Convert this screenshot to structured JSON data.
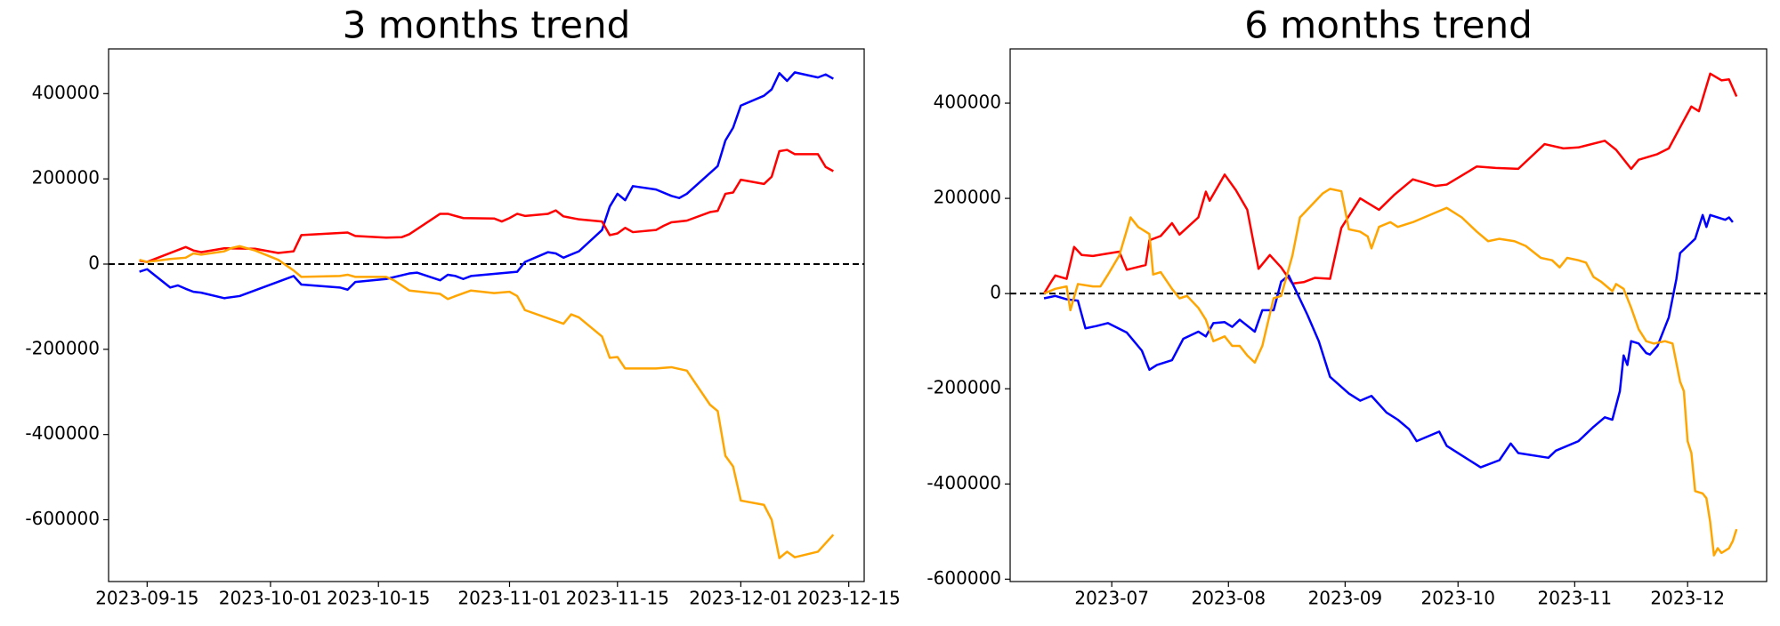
{
  "chart_data": [
    {
      "type": "line",
      "title": "3 months trend",
      "xlim": [
        "2023-09-10",
        "2023-12-17"
      ],
      "xticks": [
        "2023-09-15",
        "2023-10-01",
        "2023-10-15",
        "2023-11-01",
        "2023-11-15",
        "2023-12-01",
        "2023-12-15"
      ],
      "ylim": [
        -745000,
        505000
      ],
      "yticks": [
        -600000,
        -400000,
        -200000,
        0,
        200000,
        400000
      ],
      "hline": 0,
      "series": [
        {
          "color": "#0000ff",
          "x": [
            "2023-09-14",
            "2023-09-15",
            "2023-09-18",
            "2023-09-19",
            "2023-09-20",
            "2023-09-21",
            "2023-09-22",
            "2023-09-25",
            "2023-09-27",
            "2023-10-04",
            "2023-10-05",
            "2023-10-10",
            "2023-10-11",
            "2023-10-12",
            "2023-10-16",
            "2023-10-19",
            "2023-10-20",
            "2023-10-23",
            "2023-10-24",
            "2023-10-25",
            "2023-10-26",
            "2023-10-27",
            "2023-11-02",
            "2023-11-03",
            "2023-11-06",
            "2023-11-07",
            "2023-11-08",
            "2023-11-10",
            "2023-11-13",
            "2023-11-14",
            "2023-11-15",
            "2023-11-16",
            "2023-11-17",
            "2023-11-20",
            "2023-11-22",
            "2023-11-23",
            "2023-11-24",
            "2023-11-28",
            "2023-11-29",
            "2023-11-30",
            "2023-12-01",
            "2023-12-04",
            "2023-12-05",
            "2023-12-06",
            "2023-12-07",
            "2023-12-08",
            "2023-12-11",
            "2023-12-12",
            "2023-12-13"
          ],
          "values": [
            -18000,
            -12000,
            -55000,
            -50000,
            -58000,
            -65000,
            -67000,
            -80000,
            -75000,
            -28000,
            -48000,
            -55000,
            -60000,
            -42000,
            -35000,
            -22000,
            -20000,
            -38000,
            -25000,
            -28000,
            -35000,
            -28000,
            -18000,
            5000,
            28000,
            25000,
            15000,
            30000,
            80000,
            135000,
            165000,
            150000,
            183000,
            175000,
            160000,
            155000,
            165000,
            230000,
            290000,
            320000,
            372000,
            395000,
            410000,
            448000,
            430000,
            450000,
            438000,
            445000,
            435000
          ]
        },
        {
          "color": "#ff0000",
          "x": [
            "2023-09-14",
            "2023-09-15",
            "2023-09-20",
            "2023-09-21",
            "2023-09-22",
            "2023-09-25",
            "2023-09-29",
            "2023-10-02",
            "2023-10-04",
            "2023-10-05",
            "2023-10-10",
            "2023-10-11",
            "2023-10-12",
            "2023-10-16",
            "2023-10-18",
            "2023-10-19",
            "2023-10-23",
            "2023-10-24",
            "2023-10-26",
            "2023-10-30",
            "2023-10-31",
            "2023-11-01",
            "2023-11-02",
            "2023-11-03",
            "2023-11-06",
            "2023-11-07",
            "2023-11-08",
            "2023-11-10",
            "2023-11-13",
            "2023-11-14",
            "2023-11-15",
            "2023-11-16",
            "2023-11-17",
            "2023-11-20",
            "2023-11-21",
            "2023-11-22",
            "2023-11-24",
            "2023-11-27",
            "2023-11-28",
            "2023-11-29",
            "2023-11-30",
            "2023-12-01",
            "2023-12-04",
            "2023-12-05",
            "2023-12-06",
            "2023-12-07",
            "2023-12-08",
            "2023-12-11",
            "2023-12-12",
            "2023-12-13"
          ],
          "values": [
            8000,
            5000,
            40000,
            32000,
            28000,
            37000,
            36000,
            26000,
            30000,
            68000,
            73000,
            74000,
            66000,
            62000,
            63000,
            70000,
            118000,
            118000,
            108000,
            107000,
            100000,
            108000,
            118000,
            113000,
            118000,
            126000,
            112000,
            105000,
            100000,
            68000,
            72000,
            85000,
            75000,
            80000,
            90000,
            98000,
            102000,
            122000,
            125000,
            165000,
            168000,
            198000,
            188000,
            205000,
            265000,
            268000,
            258000,
            258000,
            228000,
            218000
          ]
        },
        {
          "color": "#ffa500",
          "x": [
            "2023-09-14",
            "2023-09-15",
            "2023-09-18",
            "2023-09-20",
            "2023-09-21",
            "2023-09-22",
            "2023-09-25",
            "2023-09-26",
            "2023-09-27",
            "2023-09-29",
            "2023-10-02",
            "2023-10-04",
            "2023-10-05",
            "2023-10-10",
            "2023-10-11",
            "2023-10-12",
            "2023-10-16",
            "2023-10-17",
            "2023-10-19",
            "2023-10-23",
            "2023-10-24",
            "2023-10-25",
            "2023-10-27",
            "2023-10-30",
            "2023-11-01",
            "2023-11-02",
            "2023-11-03",
            "2023-11-08",
            "2023-11-09",
            "2023-11-10",
            "2023-11-13",
            "2023-11-14",
            "2023-11-15",
            "2023-11-16",
            "2023-11-20",
            "2023-11-22",
            "2023-11-24",
            "2023-11-27",
            "2023-11-28",
            "2023-11-29",
            "2023-11-30",
            "2023-12-01",
            "2023-12-04",
            "2023-12-05",
            "2023-12-06",
            "2023-12-07",
            "2023-12-08",
            "2023-12-11",
            "2023-12-13"
          ],
          "values": [
            10000,
            5000,
            12000,
            15000,
            25000,
            22000,
            30000,
            38000,
            42000,
            32000,
            10000,
            -15000,
            -30000,
            -28000,
            -25000,
            -30000,
            -30000,
            -38000,
            -62000,
            -70000,
            -82000,
            -75000,
            -62000,
            -68000,
            -65000,
            -75000,
            -108000,
            -140000,
            -118000,
            -125000,
            -170000,
            -220000,
            -218000,
            -245000,
            -245000,
            -242000,
            -250000,
            -330000,
            -345000,
            -450000,
            -475000,
            -555000,
            -565000,
            -600000,
            -690000,
            -675000,
            -688000,
            -675000,
            -635000
          ]
        }
      ]
    },
    {
      "type": "line",
      "title": "6 months trend",
      "xlim": [
        "2023-06-04",
        "2023-12-22"
      ],
      "xticks": [
        {
          "value": "2023-07-01",
          "label": "2023-07"
        },
        {
          "value": "2023-08-01",
          "label": "2023-08"
        },
        {
          "value": "2023-09-01",
          "label": "2023-09"
        },
        {
          "value": "2023-10-01",
          "label": "2023-10"
        },
        {
          "value": "2023-11-01",
          "label": "2023-11"
        },
        {
          "value": "2023-12-01",
          "label": "2023-12"
        }
      ],
      "ylim": [
        -605000,
        514000
      ],
      "yticks": [
        -600000,
        -400000,
        -200000,
        0,
        200000,
        400000
      ],
      "hline": 0,
      "series": [
        {
          "color": "#ff0000",
          "x": [
            "2023-06-13",
            "2023-06-15",
            "2023-06-16",
            "2023-06-19",
            "2023-06-21",
            "2023-06-23",
            "2023-06-26",
            "2023-06-29",
            "2023-07-03",
            "2023-07-05",
            "2023-07-10",
            "2023-07-11",
            "2023-07-14",
            "2023-07-17",
            "2023-07-19",
            "2023-07-24",
            "2023-07-26",
            "2023-07-27",
            "2023-07-31",
            "2023-08-03",
            "2023-08-06",
            "2023-08-09",
            "2023-08-12",
            "2023-08-15",
            "2023-08-18",
            "2023-08-21",
            "2023-08-24",
            "2023-08-28",
            "2023-08-31",
            "2023-09-05",
            "2023-09-10",
            "2023-09-14",
            "2023-09-19",
            "2023-09-25",
            "2023-09-28",
            "2023-10-06",
            "2023-10-11",
            "2023-10-17",
            "2023-10-24",
            "2023-10-29",
            "2023-11-02",
            "2023-11-09",
            "2023-11-12",
            "2023-11-16",
            "2023-11-18",
            "2023-11-23",
            "2023-11-26",
            "2023-11-30",
            "2023-12-02",
            "2023-12-04",
            "2023-12-07",
            "2023-12-10",
            "2023-12-12",
            "2023-12-14"
          ],
          "values": [
            0,
            26000,
            38000,
            31000,
            98000,
            81000,
            79000,
            83000,
            88000,
            50000,
            60000,
            112000,
            121000,
            148000,
            124000,
            160000,
            214000,
            195000,
            250000,
            217000,
            176000,
            52000,
            81000,
            55000,
            21000,
            24000,
            33000,
            31000,
            138000,
            200000,
            176000,
            207000,
            240000,
            226000,
            229000,
            267000,
            264000,
            262000,
            314000,
            305000,
            307000,
            321000,
            302000,
            262000,
            281000,
            293000,
            305000,
            364000,
            393000,
            383000,
            462000,
            448000,
            450000,
            414000
          ]
        },
        {
          "color": "#0000ff",
          "x": [
            "2023-06-13",
            "2023-06-16",
            "2023-06-19",
            "2023-06-22",
            "2023-06-24",
            "2023-06-27",
            "2023-06-30",
            "2023-07-05",
            "2023-07-09",
            "2023-07-11",
            "2023-07-13",
            "2023-07-17",
            "2023-07-20",
            "2023-07-24",
            "2023-07-26",
            "2023-07-28",
            "2023-07-31",
            "2023-08-02",
            "2023-08-04",
            "2023-08-08",
            "2023-08-10",
            "2023-08-13",
            "2023-08-15",
            "2023-08-17",
            "2023-08-19",
            "2023-08-22",
            "2023-08-25",
            "2023-08-28",
            "2023-09-02",
            "2023-09-05",
            "2023-09-08",
            "2023-09-12",
            "2023-09-15",
            "2023-09-18",
            "2023-09-20",
            "2023-09-26",
            "2023-09-28",
            "2023-10-02",
            "2023-10-05",
            "2023-10-07",
            "2023-10-12",
            "2023-10-15",
            "2023-10-17",
            "2023-10-25",
            "2023-10-27",
            "2023-11-02",
            "2023-11-06",
            "2023-11-09",
            "2023-11-11",
            "2023-11-13",
            "2023-11-14",
            "2023-11-15",
            "2023-11-16",
            "2023-11-18",
            "2023-11-20",
            "2023-11-21",
            "2023-11-23",
            "2023-11-26",
            "2023-11-27",
            "2023-11-28",
            "2023-11-29",
            "2023-12-01",
            "2023-12-03",
            "2023-12-05",
            "2023-12-06",
            "2023-12-07",
            "2023-12-11",
            "2023-12-12",
            "2023-12-13"
          ],
          "values": [
            -10000,
            -5000,
            -12000,
            -15000,
            -73000,
            -68000,
            -62000,
            -82000,
            -120000,
            -160000,
            -150000,
            -140000,
            -95000,
            -80000,
            -90000,
            -62000,
            -60000,
            -70000,
            -55000,
            -80000,
            -35000,
            -35000,
            25000,
            38000,
            5000,
            -45000,
            -100000,
            -175000,
            -210000,
            -225000,
            -215000,
            -250000,
            -265000,
            -285000,
            -310000,
            -290000,
            -320000,
            -340000,
            -355000,
            -365000,
            -350000,
            -315000,
            -335000,
            -345000,
            -330000,
            -310000,
            -280000,
            -260000,
            -265000,
            -205000,
            -130000,
            -150000,
            -100000,
            -105000,
            -125000,
            -128000,
            -110000,
            -50000,
            -10000,
            30000,
            85000,
            100000,
            115000,
            165000,
            140000,
            165000,
            155000,
            160000,
            150000
          ]
        },
        {
          "color": "#ffa500",
          "x": [
            "2023-06-13",
            "2023-06-16",
            "2023-06-19",
            "2023-06-20",
            "2023-06-22",
            "2023-06-26",
            "2023-06-28",
            "2023-06-30",
            "2023-07-03",
            "2023-07-06",
            "2023-07-08",
            "2023-07-11",
            "2023-07-12",
            "2023-07-14",
            "2023-07-17",
            "2023-07-19",
            "2023-07-21",
            "2023-07-24",
            "2023-07-26",
            "2023-07-28",
            "2023-07-31",
            "2023-08-02",
            "2023-08-04",
            "2023-08-06",
            "2023-08-08",
            "2023-08-10",
            "2023-08-13",
            "2023-08-15",
            "2023-08-18",
            "2023-08-20",
            "2023-08-23",
            "2023-08-26",
            "2023-08-28",
            "2023-08-31",
            "2023-09-02",
            "2023-09-05",
            "2023-09-07",
            "2023-09-08",
            "2023-09-10",
            "2023-09-13",
            "2023-09-15",
            "2023-09-19",
            "2023-09-22",
            "2023-09-25",
            "2023-09-28",
            "2023-10-02",
            "2023-10-06",
            "2023-10-09",
            "2023-10-12",
            "2023-10-16",
            "2023-10-19",
            "2023-10-23",
            "2023-10-26",
            "2023-10-28",
            "2023-10-30",
            "2023-11-02",
            "2023-11-04",
            "2023-11-06",
            "2023-11-08",
            "2023-11-11",
            "2023-11-12",
            "2023-11-14",
            "2023-11-16",
            "2023-11-18",
            "2023-11-20",
            "2023-11-22",
            "2023-11-25",
            "2023-11-27",
            "2023-11-29",
            "2023-11-30",
            "2023-12-01",
            "2023-12-02",
            "2023-12-03",
            "2023-12-05",
            "2023-12-06",
            "2023-12-07",
            "2023-12-08",
            "2023-12-09",
            "2023-12-10",
            "2023-12-12",
            "2023-12-13",
            "2023-12-14"
          ],
          "values": [
            0,
            10000,
            15000,
            -35000,
            20000,
            15000,
            15000,
            40000,
            80000,
            160000,
            140000,
            125000,
            40000,
            45000,
            10000,
            -10000,
            -5000,
            -30000,
            -55000,
            -100000,
            -90000,
            -110000,
            -110000,
            -130000,
            -145000,
            -110000,
            -10000,
            -5000,
            80000,
            160000,
            185000,
            210000,
            220000,
            215000,
            135000,
            130000,
            120000,
            95000,
            140000,
            150000,
            140000,
            150000,
            160000,
            170000,
            180000,
            160000,
            130000,
            110000,
            115000,
            110000,
            100000,
            75000,
            70000,
            55000,
            75000,
            70000,
            65000,
            35000,
            25000,
            5000,
            20000,
            10000,
            -30000,
            -75000,
            -100000,
            -105000,
            -100000,
            -105000,
            -185000,
            -205000,
            -310000,
            -335000,
            -415000,
            -420000,
            -430000,
            -480000,
            -550000,
            -535000,
            -545000,
            -535000,
            -520000,
            -495000
          ]
        }
      ]
    }
  ]
}
